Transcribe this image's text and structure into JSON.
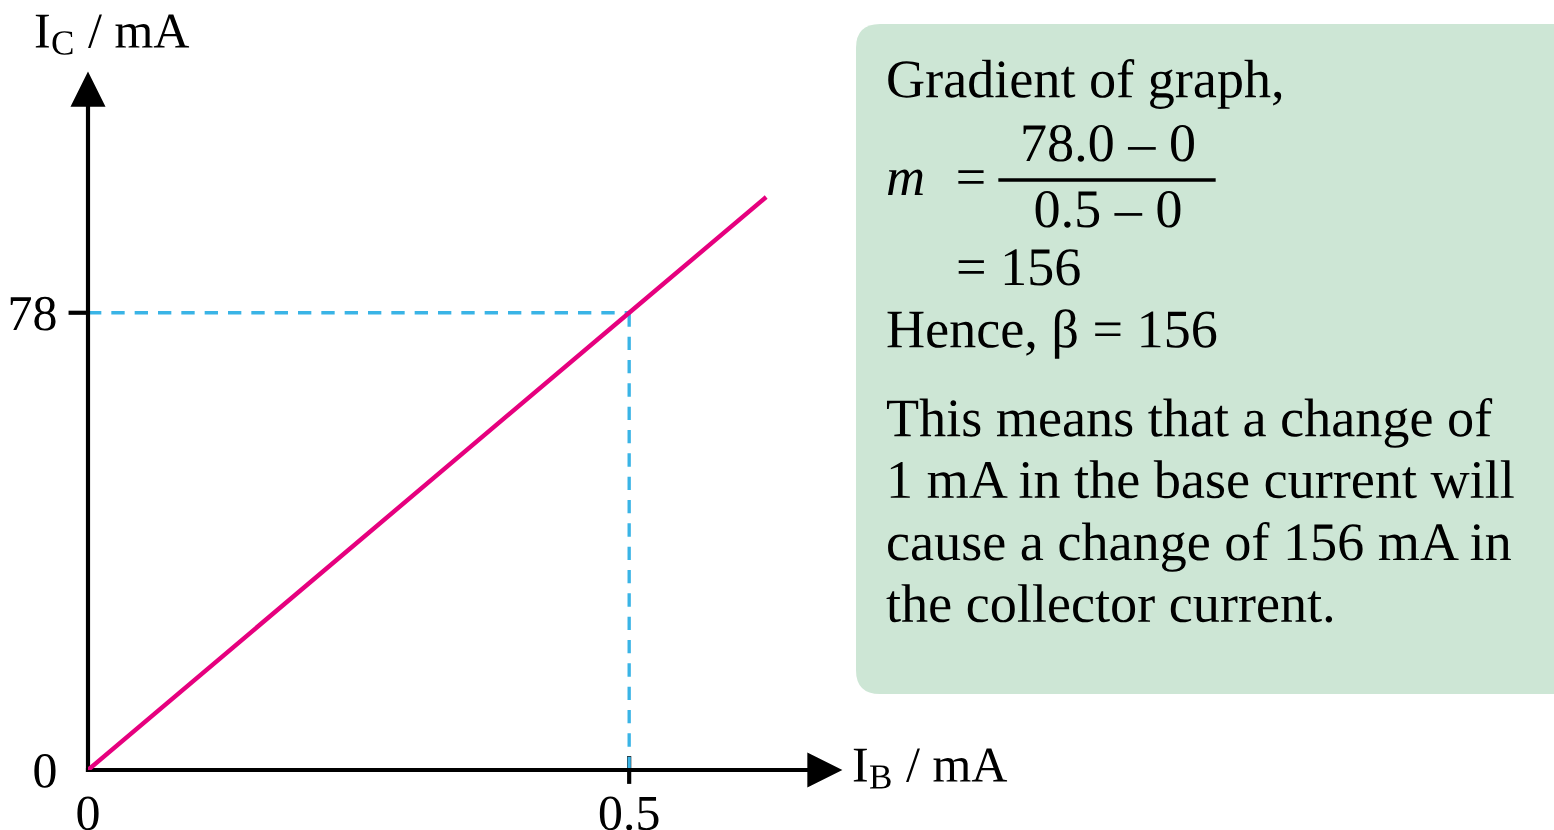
{
  "chart_data": {
    "type": "line",
    "xlabel": "I$_{B}$ / mA",
    "ylabel": "I$_{C}$ / mA",
    "x": [
      0,
      0.5,
      0.625
    ],
    "series": [
      {
        "color": "#e6007e",
        "values": [
          0,
          78,
          97.5
        ]
      }
    ],
    "xlim": [
      0,
      0.68
    ],
    "ylim": [
      0,
      116
    ],
    "xticks": [
      0,
      0.5
    ],
    "yticks": [
      0,
      78
    ],
    "ref_lines": [
      {
        "axis": "x",
        "value": 0.5,
        "color": "#3ab4e6",
        "line_style": "dashed"
      },
      {
        "axis": "y",
        "value": 78,
        "color": "#3ab4e6",
        "line_style": "dashed"
      }
    ],
    "annotations": [
      "Gradient of graph,",
      "m  =",
      "78.0 – 0",
      "0.5 – 0",
      "= 156",
      "Hence, β = 156",
      "This means that a change of\n1 mA in the base current will\ncause a change of 156 mA in\nthe collector current."
    ]
  }
}
